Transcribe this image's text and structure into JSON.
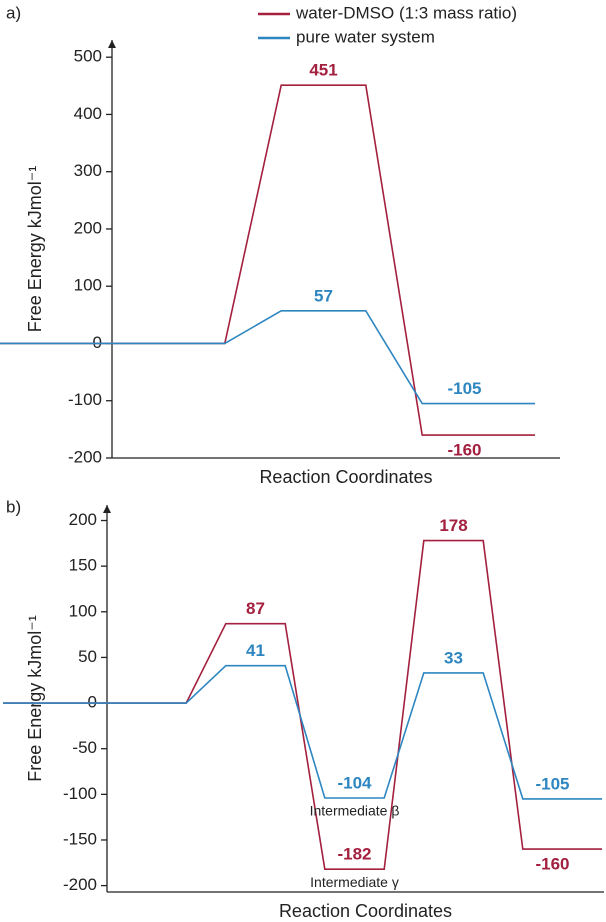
{
  "chart_data": [
    {
      "type": "line",
      "panel_label": "a)",
      "y_label": "Free Energy kJmol⁻¹",
      "x_label": "Reaction Coordinates",
      "categories": [
        null,
        null,
        null
      ],
      "series": [
        {
          "name": "water-DMSO (1:3 mass ratio)",
          "color": "#a3203f",
          "values": [
            0,
            451,
            -160
          ]
        },
        {
          "name": "pure water system",
          "color": "#2e86c1",
          "values": [
            0,
            57,
            -105
          ]
        }
      ],
      "ylim": [
        -200,
        530
      ],
      "yticks": [
        -200,
        -100,
        0,
        100,
        200,
        300,
        400,
        500
      ],
      "legend": "upper right"
    },
    {
      "type": "line",
      "panel_label": "b)",
      "y_label": "Free Energy kJmol⁻¹",
      "x_label": "Reaction Coordinates",
      "categories": [
        null,
        null,
        null,
        null,
        null
      ],
      "series": [
        {
          "color": "#a3203f",
          "values": [
            0,
            87,
            -182,
            178,
            -160
          ]
        },
        {
          "color": "#2e86c1",
          "values": [
            0,
            41,
            -104,
            33,
            -105
          ]
        }
      ],
      "annotations": [
        "Intermediate β",
        "Intermediate γ"
      ],
      "ylim": [
        -207,
        217
      ],
      "yticks": [
        -200,
        -150,
        -100,
        -50,
        0,
        50,
        100,
        150,
        200
      ]
    }
  ]
}
